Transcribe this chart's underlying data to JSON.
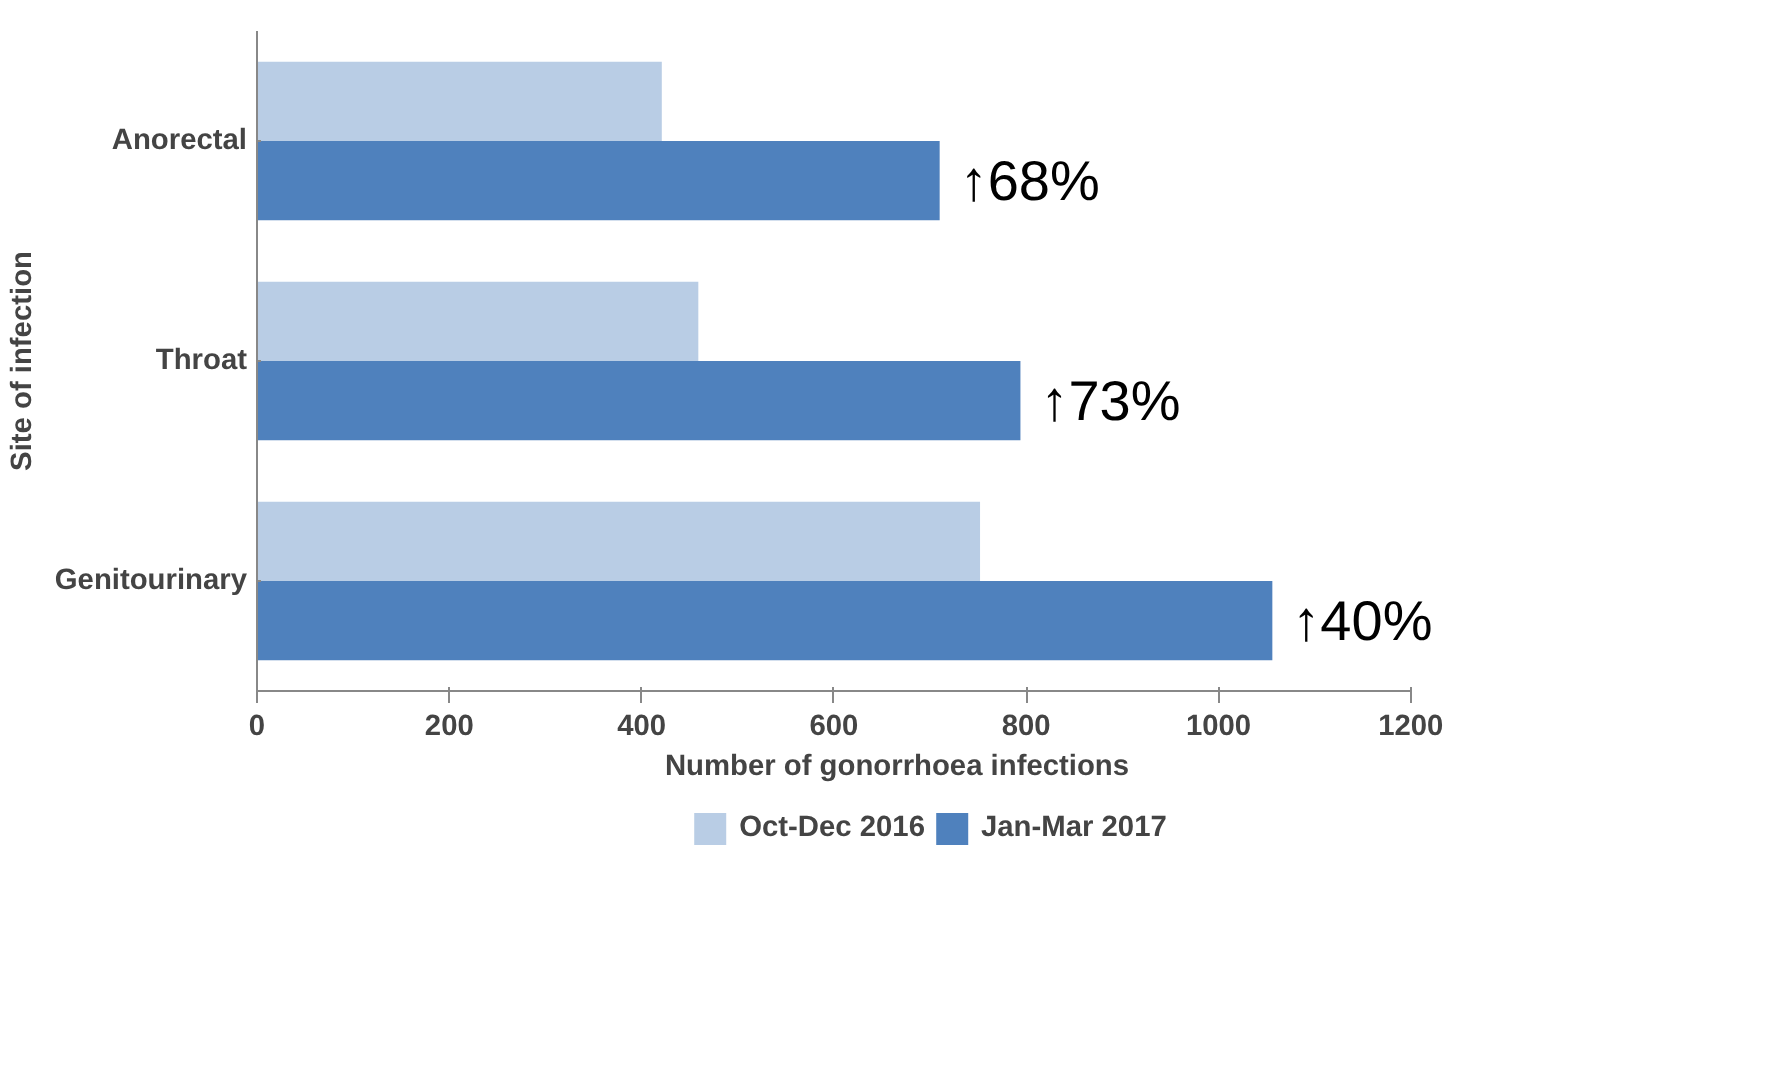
{
  "chart_data": {
    "type": "bar",
    "orientation": "horizontal",
    "xlabel": "Number of gonorrhoea infections",
    "ylabel": "Site of infection",
    "categories": [
      "Anorectal",
      "Throat",
      "Genitourinary"
    ],
    "series": [
      {
        "name": "Oct-Dec 2016",
        "color": "#b9cde5",
        "values": [
          421,
          459,
          752
        ]
      },
      {
        "name": "Jan-Mar 2017",
        "color": "#4f81bd",
        "values": [
          710,
          794,
          1056
        ]
      }
    ],
    "xlim": [
      0,
      1200
    ],
    "xticks": [
      0,
      200,
      400,
      600,
      800,
      1000,
      1200
    ],
    "grid": false,
    "legend": "bottom",
    "annotations": [
      {
        "text": "↑68%",
        "x": 710,
        "y": "Anorectal"
      },
      {
        "text": "↑73%",
        "x": 794,
        "y": "Throat"
      },
      {
        "text": "↑40%",
        "x": 1056,
        "y": "Genitourinary"
      }
    ]
  }
}
